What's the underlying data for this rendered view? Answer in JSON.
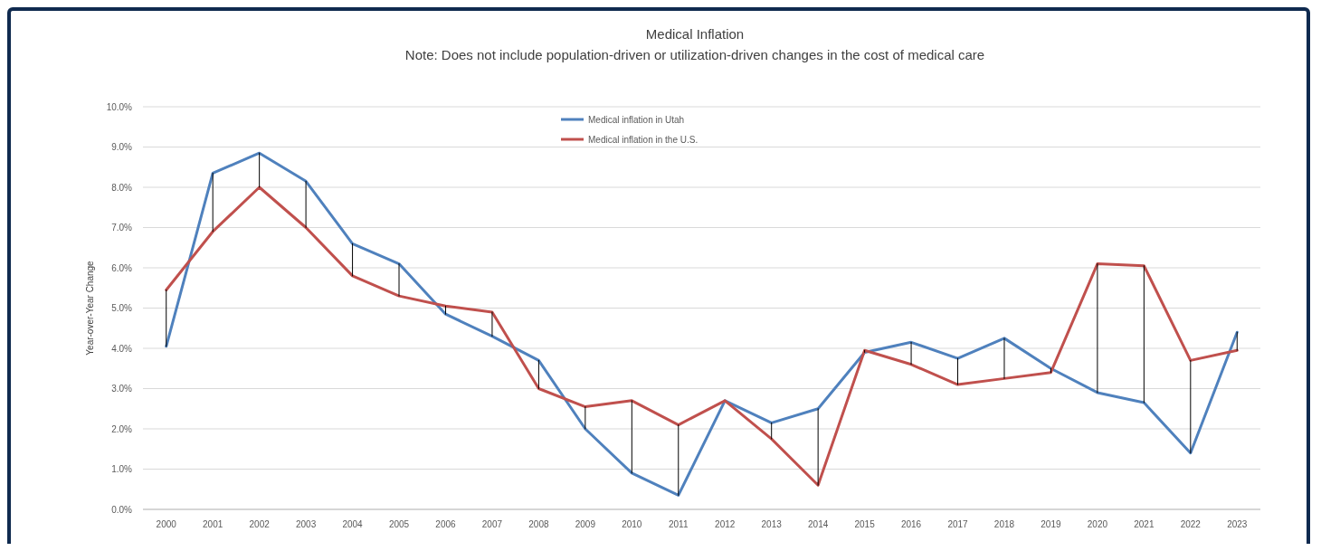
{
  "chart_data": {
    "type": "line",
    "title": "Medical Inflation",
    "subtitle": "Note: Does not include population-driven or utilization-driven changes in the cost of medical care",
    "ylabel": "Year-over-Year Change",
    "categories": [
      "2000",
      "2001",
      "2002",
      "2003",
      "2004",
      "2005",
      "2006",
      "2007",
      "2008",
      "2009",
      "2010",
      "2011",
      "2012",
      "2013",
      "2014",
      "2015",
      "2016",
      "2017",
      "2018",
      "2019",
      "2020",
      "2021",
      "2022",
      "2023"
    ],
    "series": [
      {
        "name": "Medical inflation in Utah",
        "color": "#4f81bd",
        "values": [
          4.05,
          8.35,
          8.85,
          8.15,
          6.6,
          6.1,
          4.85,
          4.3,
          3.7,
          2.0,
          0.9,
          0.35,
          2.7,
          2.15,
          2.5,
          3.9,
          4.15,
          3.75,
          4.25,
          3.5,
          2.9,
          2.65,
          1.4,
          4.4
        ]
      },
      {
        "name": "Medical inflation in the U.S.",
        "color": "#c0504d",
        "values": [
          5.45,
          6.9,
          8.0,
          7.0,
          5.8,
          5.3,
          5.05,
          4.9,
          3.0,
          2.55,
          2.7,
          2.1,
          2.7,
          1.75,
          0.6,
          3.95,
          3.6,
          3.1,
          3.25,
          3.4,
          6.1,
          6.05,
          3.7,
          3.95
        ],
        "errors": [
          [
            4.05,
            5.45
          ],
          [
            6.9,
            8.35
          ],
          [
            8.0,
            8.85
          ],
          [
            7.0,
            8.15
          ],
          [
            5.8,
            6.6
          ],
          [
            5.3,
            6.1
          ],
          [
            4.85,
            5.05
          ],
          [
            4.3,
            4.9
          ],
          [
            3.0,
            3.7
          ],
          [
            2.0,
            2.55
          ],
          [
            0.9,
            2.7
          ],
          [
            0.35,
            2.1
          ],
          null,
          [
            1.75,
            2.15
          ],
          [
            0.6,
            2.5
          ],
          [
            3.9,
            3.95
          ],
          [
            3.6,
            4.15
          ],
          [
            3.1,
            3.75
          ],
          [
            3.25,
            4.25
          ],
          [
            3.4,
            3.5
          ],
          [
            2.9,
            6.1
          ],
          [
            2.65,
            6.05
          ],
          [
            1.4,
            3.7
          ],
          [
            3.95,
            4.4
          ]
        ]
      }
    ],
    "ylim": [
      0,
      10
    ],
    "yticks": [
      {
        "value": 0,
        "label": "0.0%"
      },
      {
        "value": 1,
        "label": "1.0%"
      },
      {
        "value": 2,
        "label": "2.0%"
      },
      {
        "value": 3,
        "label": "3.0%"
      },
      {
        "value": 4,
        "label": "4.0%"
      },
      {
        "value": 5,
        "label": "5.0%"
      },
      {
        "value": 6,
        "label": "6.0%"
      },
      {
        "value": 7,
        "label": "7.0%"
      },
      {
        "value": 8,
        "label": "8.0%"
      },
      {
        "value": 9,
        "label": "9.0%"
      },
      {
        "value": 10,
        "label": "10.0%"
      }
    ],
    "grid": "y",
    "legend": "top",
    "marker": "none",
    "line_style": "solid"
  }
}
